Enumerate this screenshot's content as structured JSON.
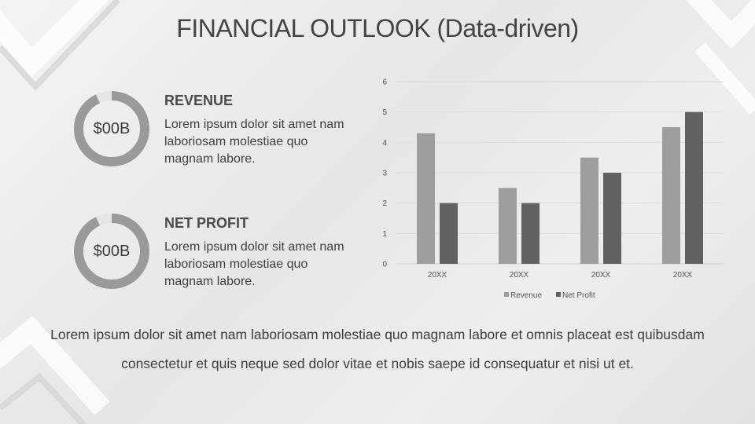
{
  "title": "FINANCIAL OUTLOOK (Data-driven)",
  "colors": {
    "revenue": "#9e9e9e",
    "net_profit": "#616161",
    "donut_track": "#e6e6e6",
    "donut_fill": "#9a9a9a"
  },
  "kpis": [
    {
      "value": "$00B",
      "title": "REVENUE",
      "text": "Lorem ipsum dolor sit amet nam laboriosam molestiae quo magnam labore.",
      "fill_fraction": 0.93
    },
    {
      "value": "$00B",
      "title": "NET PROFIT",
      "text": "Lorem ipsum dolor sit amet nam laboriosam molestiae quo magnam labore.",
      "fill_fraction": 0.93
    }
  ],
  "footer": "Lorem ipsum dolor sit amet nam laboriosam molestiae quo magnam labore et omnis placeat est quibusdam consectetur et quis neque sed dolor vitae et nobis saepe id consequatur et nisi ut et.",
  "chart_data": {
    "type": "bar",
    "categories": [
      "20XX",
      "20XX",
      "20XX",
      "20XX"
    ],
    "series": [
      {
        "name": "Revenue",
        "values": [
          4.3,
          2.5,
          3.5,
          4.5
        ]
      },
      {
        "name": "Net Profit",
        "values": [
          2.0,
          2.0,
          3.0,
          5.0
        ]
      }
    ],
    "yticks": [
      "0",
      "1",
      "2",
      "3",
      "4",
      "5",
      "6"
    ],
    "ylim": [
      0,
      6
    ],
    "grid": true,
    "legend": "bottom"
  }
}
